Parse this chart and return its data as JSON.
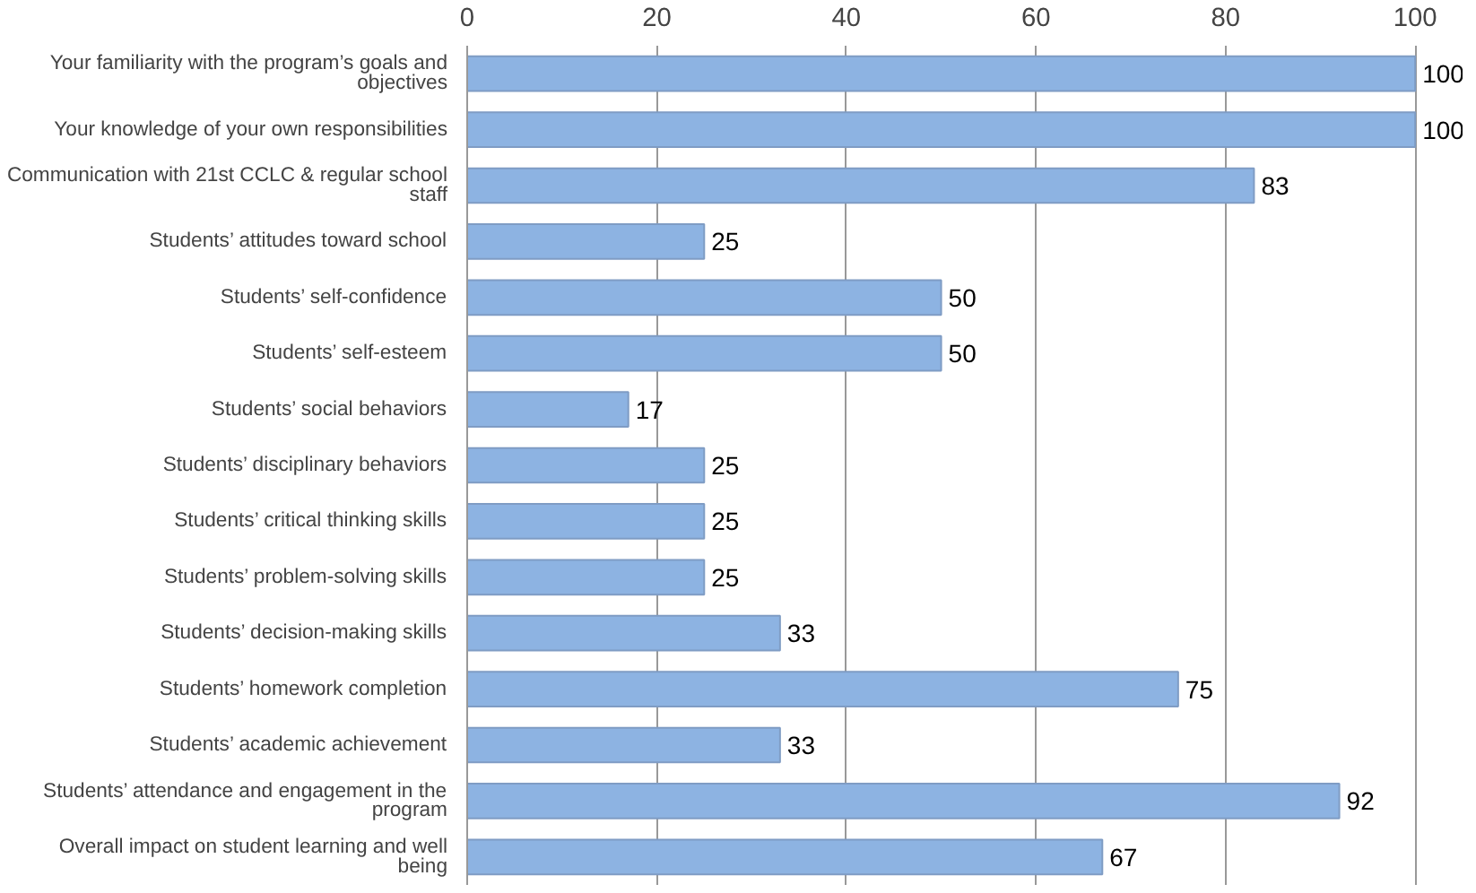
{
  "chart_data": {
    "type": "bar",
    "orientation": "horizontal",
    "categories": [
      "Your familiarity with the program’s goals and objectives",
      "Your knowledge of your own responsibilities",
      "Communication with 21st CCLC & regular school staff",
      "Students’ attitudes toward school",
      "Students’ self-confidence",
      "Students’ self-esteem",
      "Students’ social behaviors",
      "Students’ disciplinary behaviors",
      "Students’ critical thinking skills",
      "Students’ problem-solving skills",
      "Students’ decision-making skills",
      "Students’ homework completion",
      "Students’ academic achievement",
      "Students’ attendance and engagement in the program",
      "Overall impact on student learning and well being"
    ],
    "values": [
      100,
      100,
      83,
      25,
      50,
      50,
      17,
      25,
      25,
      25,
      33,
      75,
      33,
      92,
      67
    ],
    "color": "#8db3e2",
    "xlim": [
      0,
      100
    ],
    "xticks": [
      0,
      20,
      40,
      60,
      80,
      100
    ],
    "grid": "x",
    "data_labels": true
  }
}
